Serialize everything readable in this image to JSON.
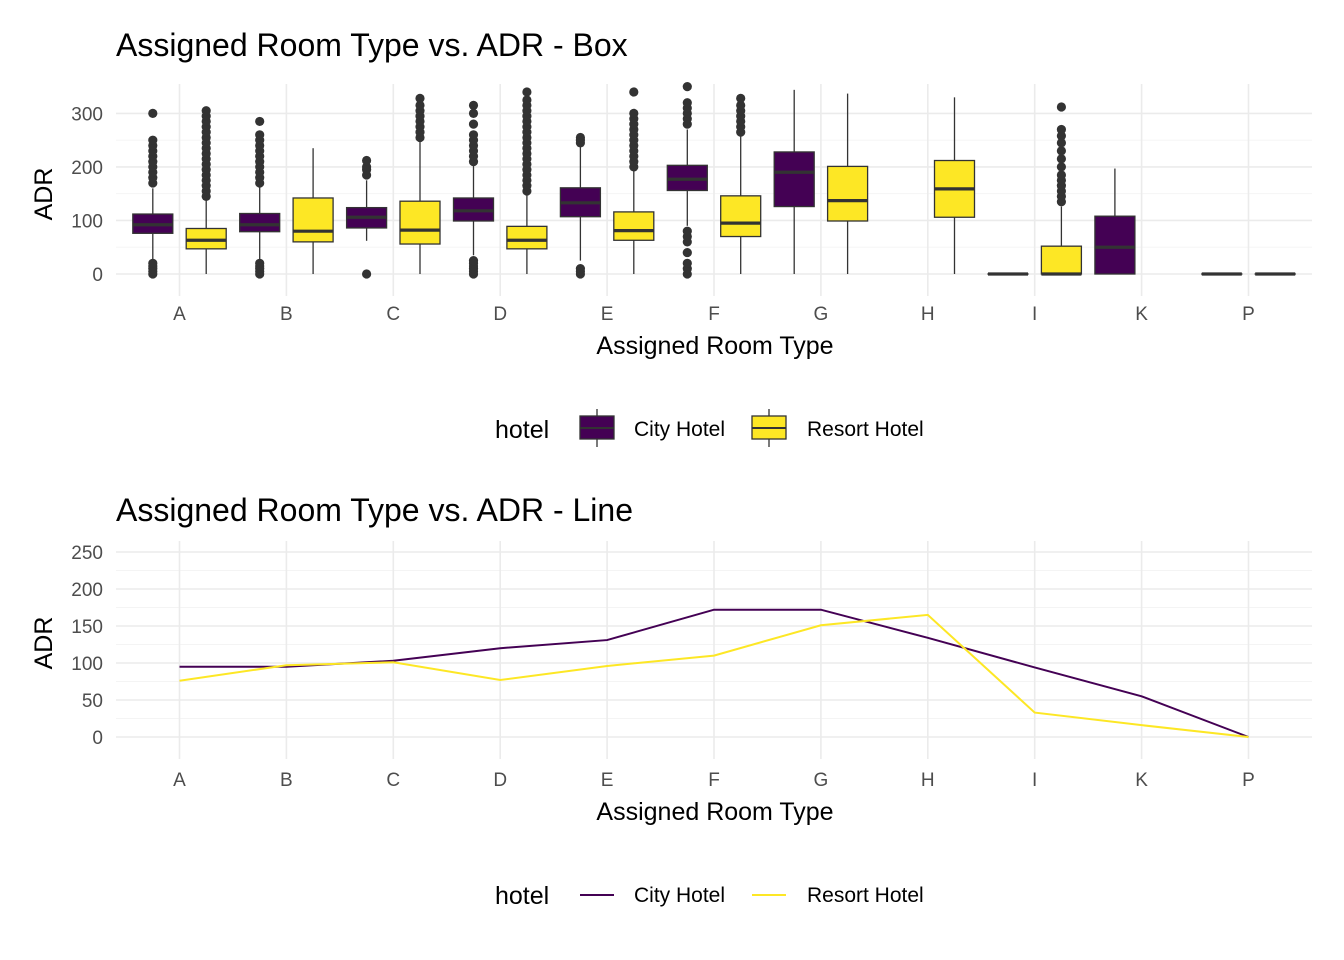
{
  "chart_data": [
    {
      "type": "box",
      "title": "Assigned Room Type vs. ADR - Box",
      "xlabel": "Assigned Room Type",
      "ylabel": "ADR",
      "categories": [
        "A",
        "B",
        "C",
        "D",
        "E",
        "F",
        "G",
        "H",
        "I",
        "K",
        "P"
      ],
      "ylim": [
        0,
        350
      ],
      "yticks": [
        0,
        100,
        200,
        300
      ],
      "grid": true,
      "legend": {
        "title": "hotel",
        "position": "bottom"
      },
      "series": [
        {
          "name": "City Hotel",
          "color": "#440154",
          "boxes": [
            {
              "category": "A",
              "q1": 76,
              "median": 92,
              "q3": 112,
              "whisker_low": 23,
              "whisker_high": 160,
              "outliers_low": [
                0,
                5,
                10,
                15,
                20
              ],
              "outliers_high": [
                170,
                180,
                190,
                200,
                210,
                220,
                230,
                240,
                250,
                300
              ]
            },
            {
              "category": "B",
              "q1": 79,
              "median": 92,
              "q3": 113,
              "whisker_low": 28,
              "whisker_high": 165,
              "outliers_low": [
                0,
                5,
                10,
                15,
                20
              ],
              "outliers_high": [
                170,
                180,
                190,
                200,
                210,
                220,
                230,
                240,
                250,
                260,
                285
              ]
            },
            {
              "category": "C",
              "q1": 86,
              "median": 106,
              "q3": 124,
              "whisker_low": 62,
              "whisker_high": 175,
              "outliers_low": [
                0
              ],
              "outliers_high": [
                185,
                195,
                200,
                212
              ]
            },
            {
              "category": "D",
              "q1": 99,
              "median": 118,
              "q3": 142,
              "whisker_low": 35,
              "whisker_high": 205,
              "outliers_low": [
                0,
                5,
                10,
                15,
                20,
                25
              ],
              "outliers_high": [
                210,
                220,
                230,
                240,
                250,
                260,
                280,
                300,
                315
              ]
            },
            {
              "category": "E",
              "q1": 107,
              "median": 133,
              "q3": 161,
              "whisker_low": 25,
              "whisker_high": 240,
              "outliers_low": [
                0,
                5,
                10
              ],
              "outliers_high": [
                245,
                250,
                255
              ]
            },
            {
              "category": "F",
              "q1": 156,
              "median": 177,
              "q3": 203,
              "whisker_low": 90,
              "whisker_high": 270,
              "outliers_low": [
                0,
                10,
                20,
                40,
                60,
                70,
                80
              ],
              "outliers_high": [
                280,
                290,
                300,
                310,
                320,
                350
              ]
            },
            {
              "category": "G",
              "q1": 126,
              "median": 190,
              "q3": 228,
              "whisker_low": 0,
              "whisker_high": 344,
              "outliers_low": [],
              "outliers_high": []
            },
            {
              "category": "I",
              "q1": 0,
              "median": 0,
              "q3": 0,
              "whisker_low": 0,
              "whisker_high": 0,
              "outliers_low": [],
              "outliers_high": []
            },
            {
              "category": "K",
              "q1": 0,
              "median": 50,
              "q3": 108,
              "whisker_low": 0,
              "whisker_high": 197,
              "outliers_low": [],
              "outliers_high": []
            },
            {
              "category": "P",
              "q1": 0,
              "median": 0,
              "q3": 0,
              "whisker_low": 0,
              "whisker_high": 0,
              "outliers_low": [],
              "outliers_high": []
            }
          ]
        },
        {
          "name": "Resort Hotel",
          "color": "#fde725",
          "boxes": [
            {
              "category": "A",
              "q1": 47,
              "median": 63,
              "q3": 85,
              "whisker_low": 0,
              "whisker_high": 142,
              "outliers_low": [],
              "outliers_high": [
                145,
                155,
                165,
                175,
                185,
                195,
                205,
                215,
                225,
                235,
                245,
                255,
                265,
                275,
                285,
                295,
                305
              ]
            },
            {
              "category": "B",
              "q1": 60,
              "median": 80,
              "q3": 142,
              "whisker_low": 0,
              "whisker_high": 235,
              "outliers_low": [],
              "outliers_high": []
            },
            {
              "category": "C",
              "q1": 56,
              "median": 82,
              "q3": 136,
              "whisker_low": 0,
              "whisker_high": 250,
              "outliers_low": [],
              "outliers_high": [
                255,
                265,
                275,
                285,
                295,
                305,
                315,
                328
              ]
            },
            {
              "category": "D",
              "q1": 47,
              "median": 63,
              "q3": 89,
              "whisker_low": 0,
              "whisker_high": 150,
              "outliers_low": [],
              "outliers_high": [
                155,
                165,
                175,
                185,
                195,
                205,
                215,
                225,
                235,
                245,
                255,
                265,
                275,
                285,
                295,
                305,
                315,
                325,
                340
              ]
            },
            {
              "category": "E",
              "q1": 63,
              "median": 81,
              "q3": 116,
              "whisker_low": 0,
              "whisker_high": 196,
              "outliers_low": [],
              "outliers_high": [
                200,
                210,
                220,
                230,
                240,
                250,
                260,
                270,
                280,
                290,
                300,
                340
              ]
            },
            {
              "category": "F",
              "q1": 70,
              "median": 95,
              "q3": 146,
              "whisker_low": 0,
              "whisker_high": 258,
              "outliers_low": [],
              "outliers_high": [
                265,
                275,
                285,
                295,
                305,
                315,
                328
              ]
            },
            {
              "category": "G",
              "q1": 99,
              "median": 137,
              "q3": 201,
              "whisker_low": 0,
              "whisker_high": 337,
              "outliers_low": [],
              "outliers_high": []
            },
            {
              "category": "H",
              "q1": 106,
              "median": 159,
              "q3": 212,
              "whisker_low": 0,
              "whisker_high": 330,
              "outliers_low": [],
              "outliers_high": []
            },
            {
              "category": "I",
              "q1": 0,
              "median": 0,
              "q3": 52,
              "whisker_low": 0,
              "whisker_high": 126,
              "outliers_low": [],
              "outliers_high": [
                135,
                145,
                155,
                165,
                175,
                185,
                200,
                215,
                230,
                245,
                258,
                270,
                312
              ]
            },
            {
              "category": "P",
              "q1": 0,
              "median": 0,
              "q3": 0,
              "whisker_low": 0,
              "whisker_high": 0,
              "outliers_low": [],
              "outliers_high": []
            }
          ]
        }
      ]
    },
    {
      "type": "line",
      "title": "Assigned Room Type vs. ADR - Line",
      "xlabel": "Assigned Room Type",
      "ylabel": "ADR",
      "categories": [
        "A",
        "B",
        "C",
        "D",
        "E",
        "F",
        "G",
        "H",
        "I",
        "K",
        "P"
      ],
      "ylim": [
        0,
        250
      ],
      "yticks": [
        0,
        50,
        100,
        150,
        200,
        250
      ],
      "grid": true,
      "legend": {
        "title": "hotel",
        "position": "bottom"
      },
      "series": [
        {
          "name": "City Hotel",
          "color": "#440154",
          "values": [
            95,
            95,
            103,
            120,
            131,
            172,
            172,
            134,
            94,
            55,
            0
          ]
        },
        {
          "name": "Resort Hotel",
          "color": "#fde725",
          "values": [
            76,
            97,
            101,
            77,
            96,
            110,
            151,
            165,
            33,
            16,
            0
          ]
        }
      ]
    }
  ]
}
